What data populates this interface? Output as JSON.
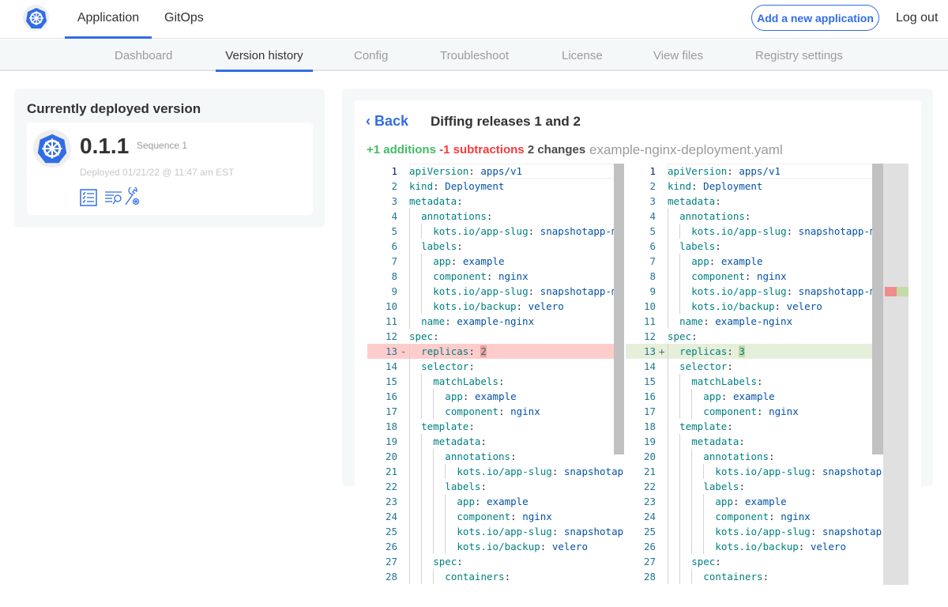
{
  "topbar": {
    "tabs": [
      {
        "label": "Application",
        "active": true
      },
      {
        "label": "GitOps",
        "active": false
      }
    ],
    "add_button": "Add a new application",
    "logout": "Log out",
    "logo_icon": "kubernetes-helm-icon"
  },
  "subnav": {
    "tabs": [
      "Dashboard",
      "Version history",
      "Config",
      "Troubleshoot",
      "License",
      "View files",
      "Registry settings"
    ],
    "active": "Version history"
  },
  "deployed": {
    "title": "Currently deployed version",
    "version": "0.1.1",
    "sequence": "Sequence 1",
    "deployed_at": "Deployed 01/21/22 @ 11:47 am EST",
    "icons": [
      "checklist-icon",
      "logs-search-icon",
      "troubleshoot-wrench-icon"
    ]
  },
  "diff": {
    "back": "Back",
    "title": "Diffing releases 1 and 2",
    "additions": "+1 additions",
    "subtractions": "-1 subtractions",
    "changes": "2 changes",
    "filename": "example-nginx-deployment.yaml",
    "colors": {
      "accent": "#326de6",
      "additions": "#44bb66",
      "subtractions": "#f73a3a",
      "key": "#008080",
      "value": "#0451a5",
      "deleted_line": "#ffcccc",
      "added_line": "#e6efda"
    },
    "lines": [
      {
        "n": "1",
        "i": 0,
        "k": "apiVersion",
        "v": "apps/v1"
      },
      {
        "n": "2",
        "i": 0,
        "k": "kind",
        "v": "Deployment"
      },
      {
        "n": "3",
        "i": 0,
        "k": "metadata",
        "v": ""
      },
      {
        "n": "4",
        "i": 1,
        "k": "annotations",
        "v": ""
      },
      {
        "n": "5",
        "i": 2,
        "k": "kots.io/app-slug",
        "v": "snapshotapp-mu"
      },
      {
        "n": "6",
        "i": 1,
        "k": "labels",
        "v": ""
      },
      {
        "n": "7",
        "i": 2,
        "k": "app",
        "v": "example"
      },
      {
        "n": "8",
        "i": 2,
        "k": "component",
        "v": "nginx"
      },
      {
        "n": "9",
        "i": 2,
        "k": "kots.io/app-slug",
        "v": "snapshotapp-mu"
      },
      {
        "n": "10",
        "i": 2,
        "k": "kots.io/backup",
        "v": "velero"
      },
      {
        "n": "11",
        "i": 1,
        "k": "name",
        "v": "example-nginx"
      },
      {
        "n": "12",
        "i": 0,
        "k": "spec",
        "v": ""
      },
      {
        "n": "13",
        "i": 1,
        "k": "replicas",
        "v": "2",
        "v2": "3",
        "changed": true
      },
      {
        "n": "14",
        "i": 1,
        "k": "selector",
        "v": ""
      },
      {
        "n": "15",
        "i": 2,
        "k": "matchLabels",
        "v": ""
      },
      {
        "n": "16",
        "i": 3,
        "k": "app",
        "v": "example"
      },
      {
        "n": "17",
        "i": 3,
        "k": "component",
        "v": "nginx"
      },
      {
        "n": "18",
        "i": 1,
        "k": "template",
        "v": ""
      },
      {
        "n": "19",
        "i": 2,
        "k": "metadata",
        "v": ""
      },
      {
        "n": "20",
        "i": 3,
        "k": "annotations",
        "v": ""
      },
      {
        "n": "21",
        "i": 4,
        "k": "kots.io/app-slug",
        "v": "snapshotap"
      },
      {
        "n": "22",
        "i": 3,
        "k": "labels",
        "v": ""
      },
      {
        "n": "23",
        "i": 4,
        "k": "app",
        "v": "example"
      },
      {
        "n": "24",
        "i": 4,
        "k": "component",
        "v": "nginx"
      },
      {
        "n": "25",
        "i": 4,
        "k": "kots.io/app-slug",
        "v": "snapshotap"
      },
      {
        "n": "26",
        "i": 4,
        "k": "kots.io/backup",
        "v": "velero"
      },
      {
        "n": "27",
        "i": 2,
        "k": "spec",
        "v": ""
      },
      {
        "n": "28",
        "i": 3,
        "k": "containers",
        "v": ""
      }
    ]
  }
}
